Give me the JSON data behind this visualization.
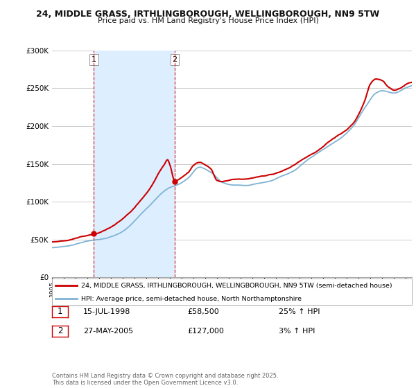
{
  "title_line1": "24, MIDDLE GRASS, IRTHLINGBOROUGH, WELLINGBOROUGH, NN9 5TW",
  "title_line2": "Price paid vs. HM Land Registry's House Price Index (HPI)",
  "legend_line1": "24, MIDDLE GRASS, IRTHLINGBOROUGH, WELLINGBOROUGH, NN9 5TW (semi-detached house)",
  "legend_line2": "HPI: Average price, semi-detached house, North Northamptonshire",
  "footer": "Contains HM Land Registry data © Crown copyright and database right 2025.\nThis data is licensed under the Open Government Licence v3.0.",
  "transaction1_date": "15-JUL-1998",
  "transaction1_price": "£58,500",
  "transaction1_hpi": "25% ↑ HPI",
  "transaction2_date": "27-MAY-2005",
  "transaction2_price": "£127,000",
  "transaction2_hpi": "3% ↑ HPI",
  "transaction1_x": 1998.54,
  "transaction1_y": 58500,
  "transaction2_x": 2005.41,
  "transaction2_y": 127000,
  "ylim": [
    0,
    300000
  ],
  "xlim_start": 1995,
  "xlim_end": 2025.5,
  "red_color": "#cc0000",
  "blue_color": "#7fb3d3",
  "shade_color": "#ddeeff",
  "bg_color": "#ffffff",
  "grid_color": "#cccccc",
  "title_color": "#111111"
}
